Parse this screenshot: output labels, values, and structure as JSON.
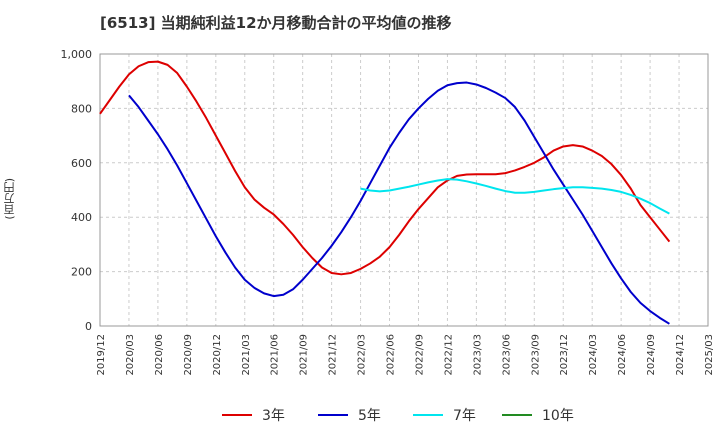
{
  "chart_data": {
    "type": "line",
    "title": "[6513]  当期純利益12か月移動合計の平均値の推移",
    "ylabel": "(百万円)",
    "xlabel": "",
    "ylim": [
      0,
      1000
    ],
    "yticks": [
      0,
      200,
      400,
      600,
      800,
      1000
    ],
    "ytick_labels": [
      "0",
      "200",
      "400",
      "600",
      "800",
      "1,000"
    ],
    "xlim": [
      "2019-12",
      "2025-03"
    ],
    "xtick_labels": [
      "2019/12",
      "2020/03",
      "2020/06",
      "2020/09",
      "2020/12",
      "2021/03",
      "2021/06",
      "2021/09",
      "2021/12",
      "2022/03",
      "2022/06",
      "2022/09",
      "2022/12",
      "2023/03",
      "2023/06",
      "2023/09",
      "2023/12",
      "2024/03",
      "2024/06",
      "2024/09",
      "2024/12",
      "2025/03"
    ],
    "grid": true,
    "legend_position": "bottom",
    "series": [
      {
        "name": "3年",
        "color": "#dd0000",
        "points": [
          [
            "2019-12",
            780
          ],
          [
            "2020-01",
            830
          ],
          [
            "2020-02",
            880
          ],
          [
            "2020-03",
            925
          ],
          [
            "2020-04",
            955
          ],
          [
            "2020-05",
            970
          ],
          [
            "2020-06",
            972
          ],
          [
            "2020-07",
            960
          ],
          [
            "2020-08",
            930
          ],
          [
            "2020-09",
            880
          ],
          [
            "2020-10",
            825
          ],
          [
            "2020-11",
            765
          ],
          [
            "2020-12",
            700
          ],
          [
            "2021-01",
            635
          ],
          [
            "2021-02",
            570
          ],
          [
            "2021-03",
            510
          ],
          [
            "2021-04",
            465
          ],
          [
            "2021-05",
            435
          ],
          [
            "2021-06",
            410
          ],
          [
            "2021-07",
            375
          ],
          [
            "2021-08",
            335
          ],
          [
            "2021-09",
            290
          ],
          [
            "2021-10",
            250
          ],
          [
            "2021-11",
            215
          ],
          [
            "2021-12",
            195
          ],
          [
            "2022-01",
            190
          ],
          [
            "2022-02",
            195
          ],
          [
            "2022-03",
            210
          ],
          [
            "2022-04",
            230
          ],
          [
            "2022-05",
            255
          ],
          [
            "2022-06",
            290
          ],
          [
            "2022-07",
            335
          ],
          [
            "2022-08",
            385
          ],
          [
            "2022-09",
            430
          ],
          [
            "2022-10",
            470
          ],
          [
            "2022-11",
            510
          ],
          [
            "2022-12",
            535
          ],
          [
            "2023-01",
            552
          ],
          [
            "2023-02",
            557
          ],
          [
            "2023-03",
            558
          ],
          [
            "2023-04",
            558
          ],
          [
            "2023-05",
            558
          ],
          [
            "2023-06",
            562
          ],
          [
            "2023-07",
            572
          ],
          [
            "2023-08",
            585
          ],
          [
            "2023-09",
            600
          ],
          [
            "2023-10",
            620
          ],
          [
            "2023-11",
            645
          ],
          [
            "2023-12",
            660
          ],
          [
            "2024-01",
            665
          ],
          [
            "2024-02",
            660
          ],
          [
            "2024-03",
            645
          ],
          [
            "2024-04",
            625
          ],
          [
            "2024-05",
            595
          ],
          [
            "2024-06",
            555
          ],
          [
            "2024-07",
            505
          ],
          [
            "2024-08",
            445
          ],
          [
            "2024-09",
            400
          ],
          [
            "2024-10",
            355
          ],
          [
            "2024-11",
            310
          ]
        ]
      },
      {
        "name": "5年",
        "color": "#0000cc",
        "points": [
          [
            "2020-03",
            848
          ],
          [
            "2020-04",
            805
          ],
          [
            "2020-05",
            755
          ],
          [
            "2020-06",
            705
          ],
          [
            "2020-07",
            650
          ],
          [
            "2020-08",
            590
          ],
          [
            "2020-09",
            525
          ],
          [
            "2020-10",
            460
          ],
          [
            "2020-11",
            395
          ],
          [
            "2020-12",
            330
          ],
          [
            "2021-01",
            270
          ],
          [
            "2021-02",
            215
          ],
          [
            "2021-03",
            170
          ],
          [
            "2021-04",
            140
          ],
          [
            "2021-05",
            120
          ],
          [
            "2021-06",
            110
          ],
          [
            "2021-07",
            115
          ],
          [
            "2021-08",
            135
          ],
          [
            "2021-09",
            170
          ],
          [
            "2021-10",
            210
          ],
          [
            "2021-11",
            250
          ],
          [
            "2021-12",
            295
          ],
          [
            "2022-01",
            345
          ],
          [
            "2022-02",
            400
          ],
          [
            "2022-03",
            460
          ],
          [
            "2022-04",
            525
          ],
          [
            "2022-05",
            590
          ],
          [
            "2022-06",
            655
          ],
          [
            "2022-07",
            710
          ],
          [
            "2022-08",
            760
          ],
          [
            "2022-09",
            800
          ],
          [
            "2022-10",
            835
          ],
          [
            "2022-11",
            865
          ],
          [
            "2022-12",
            885
          ],
          [
            "2023-01",
            893
          ],
          [
            "2023-02",
            895
          ],
          [
            "2023-03",
            888
          ],
          [
            "2023-04",
            875
          ],
          [
            "2023-05",
            858
          ],
          [
            "2023-06",
            838
          ],
          [
            "2023-07",
            805
          ],
          [
            "2023-08",
            755
          ],
          [
            "2023-09",
            695
          ],
          [
            "2023-10",
            635
          ],
          [
            "2023-11",
            575
          ],
          [
            "2023-12",
            520
          ],
          [
            "2024-01",
            465
          ],
          [
            "2024-02",
            410
          ],
          [
            "2024-03",
            350
          ],
          [
            "2024-04",
            290
          ],
          [
            "2024-05",
            230
          ],
          [
            "2024-06",
            175
          ],
          [
            "2024-07",
            125
          ],
          [
            "2024-08",
            85
          ],
          [
            "2024-09",
            55
          ],
          [
            "2024-10",
            30
          ],
          [
            "2024-11",
            8
          ]
        ]
      },
      {
        "name": "7年",
        "color": "#00e5ee",
        "points": [
          [
            "2022-03",
            505
          ],
          [
            "2022-04",
            498
          ],
          [
            "2022-05",
            495
          ],
          [
            "2022-06",
            498
          ],
          [
            "2022-07",
            505
          ],
          [
            "2022-08",
            512
          ],
          [
            "2022-09",
            520
          ],
          [
            "2022-10",
            528
          ],
          [
            "2022-11",
            535
          ],
          [
            "2022-12",
            540
          ],
          [
            "2023-01",
            538
          ],
          [
            "2023-02",
            532
          ],
          [
            "2023-03",
            524
          ],
          [
            "2023-04",
            515
          ],
          [
            "2023-05",
            505
          ],
          [
            "2023-06",
            496
          ],
          [
            "2023-07",
            490
          ],
          [
            "2023-08",
            490
          ],
          [
            "2023-09",
            493
          ],
          [
            "2023-10",
            498
          ],
          [
            "2023-11",
            503
          ],
          [
            "2023-12",
            507
          ],
          [
            "2024-01",
            510
          ],
          [
            "2024-02",
            510
          ],
          [
            "2024-03",
            508
          ],
          [
            "2024-04",
            505
          ],
          [
            "2024-05",
            500
          ],
          [
            "2024-06",
            493
          ],
          [
            "2024-07",
            482
          ],
          [
            "2024-08",
            468
          ],
          [
            "2024-09",
            452
          ],
          [
            "2024-10",
            432
          ],
          [
            "2024-11",
            413
          ]
        ]
      },
      {
        "name": "10年",
        "color": "#228b22",
        "points": []
      }
    ]
  }
}
